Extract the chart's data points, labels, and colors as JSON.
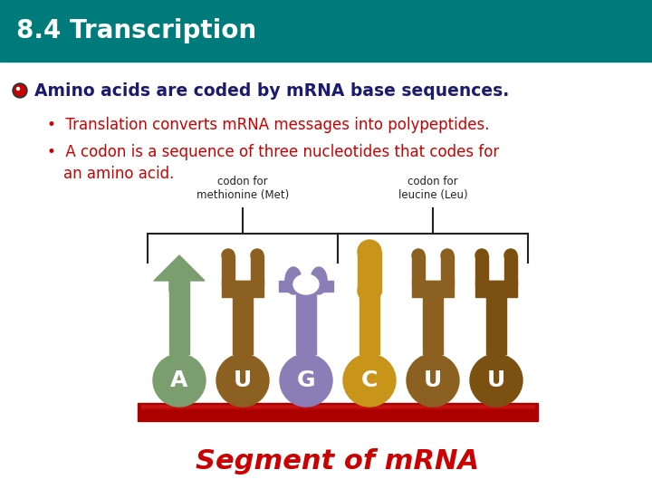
{
  "title": "8.4 Transcription",
  "title_bg_color": "#007B7B",
  "title_text_color": "#FFFFFF",
  "title_fontsize": 20,
  "bullet_head": "Amino acids are coded by mRNA base sequences.",
  "bullet_head_color": "#1A1A6E",
  "bullet1": "Translation converts mRNA messages into polypeptides.",
  "bullet2": "A codon is a sequence of three nucleotides that codes for\nan amino acid.",
  "bullet_color": "#CC0000",
  "label1": "codon for\nmethionine (Met)",
  "label2": "codon for\nleucine (Leu)",
  "label_color": "#222222",
  "segment_label": "Segment of mRNA",
  "segment_label_color": "#CC0000",
  "bg_color": "#FFFFFF",
  "nucleotides": [
    "A",
    "U",
    "G",
    "C",
    "U",
    "U"
  ],
  "nuc_colors": [
    "#7A9E6E",
    "#8B6020",
    "#8B7DB5",
    "#C8941A",
    "#8B6020",
    "#7B5010"
  ],
  "nuc_text_color": "#FFFFFF",
  "backbone_color": "#AA0000",
  "bracket_color": "#222222",
  "icon_outer_color": "#CC0000",
  "icon_inner_color": "#CC0000"
}
